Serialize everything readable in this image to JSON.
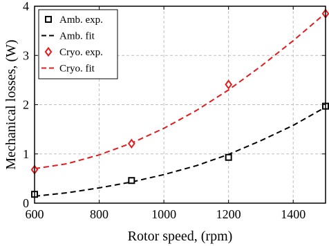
{
  "chart_data": {
    "type": "scatter",
    "xlabel": "Rotor speed, (rpm)",
    "ylabel": "Mechanical losses, (W)",
    "xlim": [
      600,
      1500
    ],
    "ylim": [
      0,
      4
    ],
    "xticks": [
      600,
      800,
      1000,
      1200,
      1400
    ],
    "yticks": [
      0,
      1,
      2,
      3,
      4
    ],
    "grid": true,
    "legend_position": "top-left",
    "series": [
      {
        "name": "Amb. exp.",
        "kind": "markers",
        "marker": "square",
        "color": "#000000",
        "x": [
          600,
          900,
          1200,
          1500
        ],
        "y": [
          0.18,
          0.46,
          0.93,
          1.97
        ]
      },
      {
        "name": "Amb. fit",
        "kind": "dashed-line",
        "color": "#000000",
        "x": [
          600,
          700,
          800,
          900,
          1000,
          1100,
          1200,
          1300,
          1400,
          1500
        ],
        "y": [
          0.14,
          0.21,
          0.31,
          0.43,
          0.58,
          0.76,
          0.99,
          1.27,
          1.58,
          1.95
        ]
      },
      {
        "name": "Cryo. exp.",
        "kind": "markers",
        "marker": "diamond",
        "color": "#e41a1c",
        "x": [
          600,
          900,
          1200,
          1500
        ],
        "y": [
          0.68,
          1.21,
          2.41,
          3.85
        ]
      },
      {
        "name": "Cryo. fit",
        "kind": "dashed-line",
        "color": "#e41a1c",
        "x": [
          600,
          700,
          800,
          900,
          1000,
          1100,
          1200,
          1300,
          1400,
          1500
        ],
        "y": [
          0.7,
          0.8,
          0.98,
          1.22,
          1.52,
          1.88,
          2.3,
          2.78,
          3.3,
          3.86
        ]
      }
    ]
  }
}
